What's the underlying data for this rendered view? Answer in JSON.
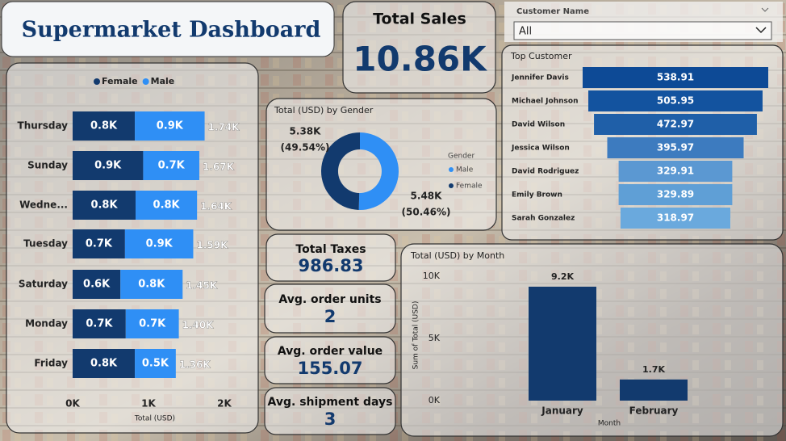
{
  "header": {
    "title": "Supermarket Dashboard"
  },
  "filter": {
    "label": "Customer Name",
    "value": "All"
  },
  "kpis": [
    {
      "label": "Total Sales",
      "value": "10.86K"
    },
    {
      "label": "Total Taxes",
      "value": "986.83"
    },
    {
      "label": "Avg. order units",
      "value": "2"
    },
    {
      "label": "Avg. order value",
      "value": "155.07"
    },
    {
      "label": "Avg. shipment days",
      "value": "3"
    }
  ],
  "chart_data": [
    {
      "type": "stacked-hbar",
      "xlabel": "Total (USD)",
      "categories": [
        "Thursday",
        "Sunday",
        "Wedne...",
        "Tuesday",
        "Saturday",
        "Monday",
        "Friday"
      ],
      "series": [
        {
          "name": "Female",
          "color": "#123a6e",
          "values": [
            820,
            930,
            830,
            690,
            630,
            700,
            820
          ],
          "value_labels": [
            "0.8K",
            "0.9K",
            "0.8K",
            "0.7K",
            "0.6K",
            "0.7K",
            "0.8K"
          ]
        },
        {
          "name": "Male",
          "color": "#2f8ff5",
          "values": [
            920,
            740,
            810,
            900,
            820,
            700,
            540
          ],
          "value_labels": [
            "0.9K",
            "0.7K",
            "0.8K",
            "0.9K",
            "0.8K",
            "0.7K",
            "0.5K"
          ]
        }
      ],
      "total_labels": [
        "1.74K",
        "1.67K",
        "1.64K",
        "1.59K",
        "1.45K",
        "1.40K",
        "1.36K"
      ],
      "xlim": [
        0,
        2000
      ],
      "xticks": [
        {
          "value": 0,
          "label": "0K"
        },
        {
          "value": 1000,
          "label": "1K"
        },
        {
          "value": 2000,
          "label": "2K"
        }
      ],
      "legend": "top"
    },
    {
      "type": "donut",
      "title": "Total (USD) by Gender",
      "legend_title": "Gender",
      "categories": [
        "Male",
        "Female"
      ],
      "values": [
        5480,
        5380
      ],
      "value_labels": [
        "5.48K",
        "5.38K"
      ],
      "percent_labels": [
        "(50.46%)",
        "(49.54%)"
      ],
      "colors": [
        "#2f8ff5",
        "#123a6e"
      ]
    },
    {
      "type": "funnel",
      "title": "Top Customer",
      "categories": [
        "Jennifer Davis",
        "Michael Johnson",
        "David Wilson",
        "Jessica Wilson",
        "David Rodriguez",
        "Emily Brown",
        "Sarah Gonzalez"
      ],
      "values": [
        538.91,
        505.95,
        472.97,
        395.97,
        329.91,
        329.89,
        318.97
      ],
      "colors": [
        "#0d4a96",
        "#13539f",
        "#1f5fa8",
        "#3d7bbf",
        "#5b98d2",
        "#5f9fd6",
        "#6aa9dd"
      ]
    },
    {
      "type": "bar",
      "title": "Total (USD) by Month",
      "xlabel": "Month",
      "ylabel": "Sum of Total (USD)",
      "categories": [
        "January",
        "February"
      ],
      "values": [
        9160,
        1700
      ],
      "value_labels": [
        "9.2K",
        "1.7K"
      ],
      "color": "#123a6e",
      "ylim": [
        0,
        10000
      ],
      "yticks": [
        {
          "value": 0,
          "label": "0K"
        },
        {
          "value": 5000,
          "label": "5K"
        },
        {
          "value": 10000,
          "label": "10K"
        }
      ]
    }
  ]
}
